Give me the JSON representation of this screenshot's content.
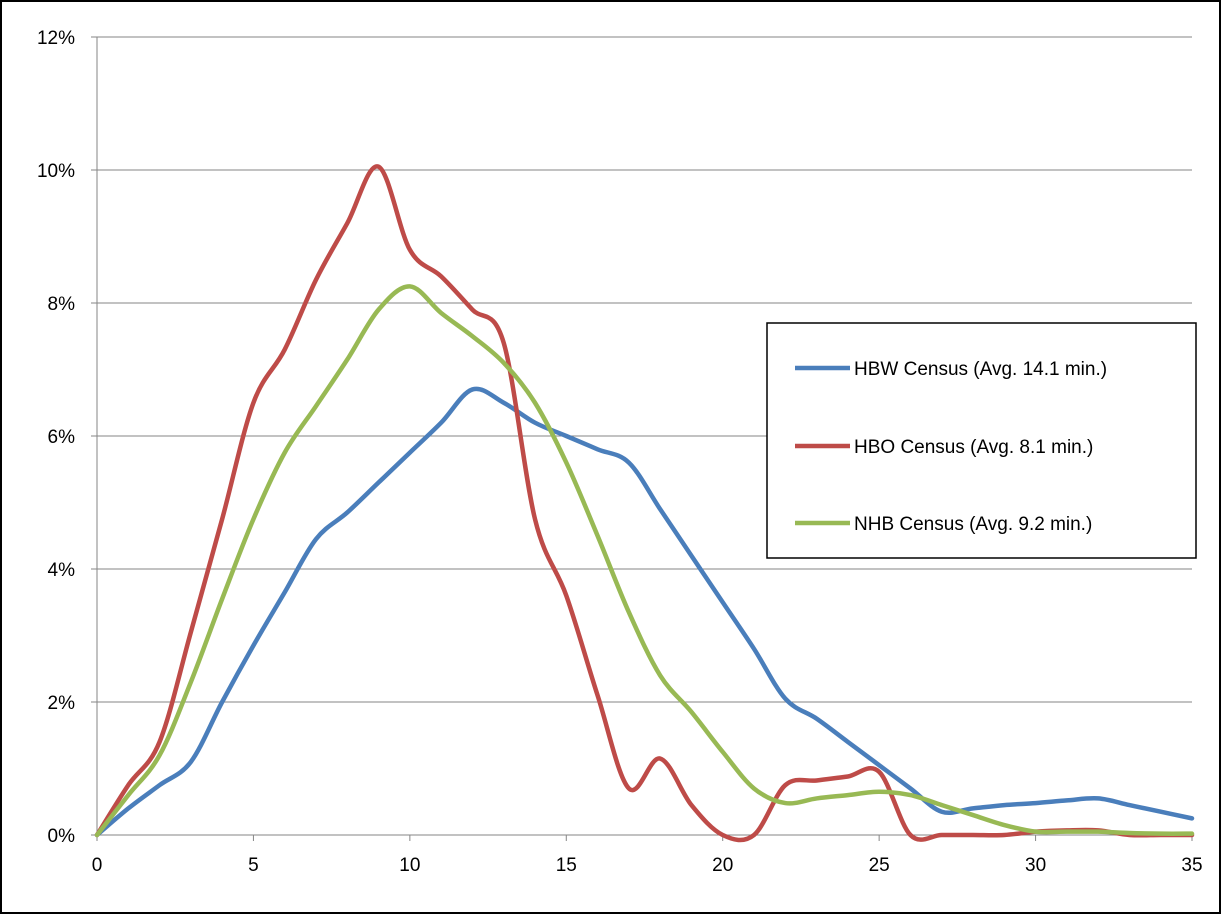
{
  "chart_data": {
    "type": "line",
    "title": "",
    "xlabel": "",
    "ylabel": "",
    "xlim": [
      0,
      35
    ],
    "ylim": [
      0,
      12
    ],
    "x_ticks": [
      0,
      5,
      10,
      15,
      20,
      25,
      30,
      35
    ],
    "y_ticks": [
      "0%",
      "2%",
      "4%",
      "6%",
      "8%",
      "10%",
      "12%"
    ],
    "grid": "horizontal",
    "legend_position": "right",
    "series": [
      {
        "name": "HBW Census (Avg. 14.1 min.)",
        "color": "#4a7ebb",
        "x": [
          0,
          1,
          2,
          3,
          4,
          5,
          6,
          7,
          8,
          9,
          10,
          11,
          12,
          13,
          14,
          15,
          16,
          17,
          18,
          19,
          20,
          21,
          22,
          23,
          24,
          25,
          26,
          27,
          28,
          29,
          30,
          31,
          32,
          33,
          34,
          35
        ],
        "y": [
          0.0,
          0.4,
          0.75,
          1.1,
          2.0,
          2.85,
          3.65,
          4.45,
          4.85,
          5.3,
          5.75,
          6.2,
          6.7,
          6.5,
          6.2,
          6.0,
          5.8,
          5.6,
          4.9,
          4.2,
          3.5,
          2.8,
          2.05,
          1.75,
          1.4,
          1.05,
          0.7,
          0.35,
          0.4,
          0.45,
          0.48,
          0.52,
          0.55,
          0.45,
          0.35,
          0.25
        ]
      },
      {
        "name": "HBO Census (Avg. 8.1 min.)",
        "color": "#be4b48",
        "x": [
          0,
          1,
          2,
          3,
          4,
          5,
          6,
          7,
          8,
          9,
          10,
          11,
          12,
          13,
          14,
          15,
          16,
          17,
          18,
          19,
          20,
          21,
          22,
          23,
          24,
          25,
          26,
          27,
          28,
          29,
          30,
          31,
          32,
          33,
          34,
          35
        ],
        "y": [
          0.0,
          0.75,
          1.4,
          3.05,
          4.75,
          6.5,
          7.3,
          8.35,
          9.2,
          10.05,
          8.8,
          8.4,
          7.9,
          7.4,
          4.75,
          3.6,
          2.1,
          0.7,
          1.15,
          0.45,
          0.0,
          0.0,
          0.75,
          0.82,
          0.88,
          0.95,
          0.0,
          0.0,
          0.0,
          0.0,
          0.05,
          0.07,
          0.07,
          0.0,
          0.0,
          0.0
        ]
      },
      {
        "name": "NHB Census (Avg. 9.2 min.)",
        "color": "#98b954",
        "x": [
          0,
          1,
          2,
          3,
          4,
          5,
          6,
          7,
          8,
          9,
          10,
          11,
          12,
          13,
          14,
          15,
          16,
          17,
          18,
          19,
          20,
          21,
          22,
          23,
          24,
          25,
          26,
          27,
          28,
          29,
          30,
          31,
          32,
          33,
          34,
          35
        ],
        "y": [
          0.0,
          0.6,
          1.2,
          2.3,
          3.55,
          4.75,
          5.75,
          6.45,
          7.15,
          7.9,
          8.25,
          7.85,
          7.5,
          7.1,
          6.5,
          5.6,
          4.5,
          3.35,
          2.4,
          1.85,
          1.25,
          0.7,
          0.48,
          0.55,
          0.6,
          0.65,
          0.6,
          0.45,
          0.3,
          0.15,
          0.05,
          0.05,
          0.05,
          0.03,
          0.02,
          0.02
        ]
      }
    ]
  }
}
